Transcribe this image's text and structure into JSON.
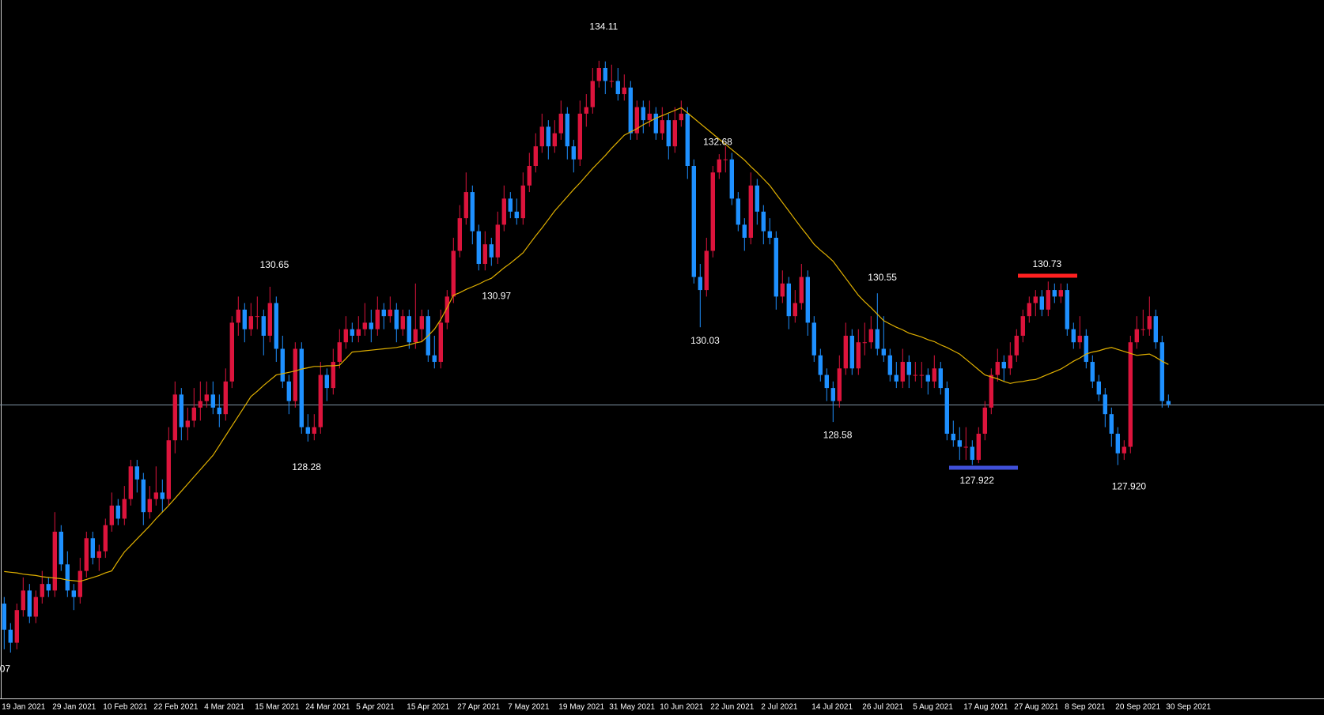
{
  "chart_data": {
    "type": "candlestick",
    "categories": [
      "19 Jan 2021",
      null,
      null,
      null,
      null,
      null,
      null,
      null,
      "29 Jan 2021",
      null,
      null,
      null,
      null,
      null,
      null,
      null,
      "10 Feb 2021",
      null,
      null,
      null,
      null,
      null,
      null,
      null,
      "22 Feb 2021",
      null,
      null,
      null,
      null,
      null,
      null,
      null,
      "4 Mar 2021",
      null,
      null,
      null,
      null,
      null,
      null,
      null,
      "15 Mar 2021",
      null,
      null,
      null,
      null,
      null,
      null,
      null,
      "24 Mar 2021",
      null,
      null,
      null,
      null,
      null,
      null,
      null,
      "5 Apr 2021",
      null,
      null,
      null,
      null,
      null,
      null,
      null,
      "15 Apr 2021",
      null,
      null,
      null,
      null,
      null,
      null,
      null,
      "27 Apr 2021",
      null,
      null,
      null,
      null,
      null,
      null,
      null,
      "7 May 2021",
      null,
      null,
      null,
      null,
      null,
      null,
      null,
      "19 May 2021",
      null,
      null,
      null,
      null,
      null,
      null,
      null,
      "31 May 2021",
      null,
      null,
      null,
      null,
      null,
      null,
      null,
      "10 Jun 2021",
      null,
      null,
      null,
      null,
      null,
      null,
      null,
      "22 Jun 2021",
      null,
      null,
      null,
      null,
      null,
      null,
      null,
      "2 Jul 2021",
      null,
      null,
      null,
      null,
      null,
      null,
      null,
      "14 Jul 2021",
      null,
      null,
      null,
      null,
      null,
      null,
      null,
      "26 Jul 2021",
      null,
      null,
      null,
      null,
      null,
      null,
      null,
      "5 Aug 2021",
      null,
      null,
      null,
      null,
      null,
      null,
      null,
      "17 Aug 2021",
      null,
      null,
      null,
      null,
      null,
      null,
      null,
      "27 Aug 2021",
      null,
      null,
      null,
      null,
      null,
      null,
      null,
      "8 Sep 2021",
      null,
      null,
      null,
      null,
      null,
      null,
      null,
      "20 Sep 2021",
      null,
      null,
      null,
      null,
      null,
      null,
      null,
      "30 Sep 2021"
    ],
    "ohlc": [
      [
        125.8,
        125.9,
        125.1,
        125.4
      ],
      [
        125.4,
        125.5,
        125.05,
        125.2
      ],
      [
        125.2,
        125.8,
        125.1,
        125.7
      ],
      [
        125.7,
        126.2,
        125.6,
        126.0
      ],
      [
        126.0,
        126.1,
        125.5,
        125.6
      ],
      [
        125.6,
        126.0,
        125.5,
        125.9
      ],
      [
        125.9,
        126.3,
        125.8,
        126.1
      ],
      [
        126.1,
        126.2,
        125.9,
        126.0
      ],
      [
        126.0,
        127.2,
        125.9,
        126.9
      ],
      [
        126.9,
        127.0,
        126.3,
        126.4
      ],
      [
        126.4,
        126.6,
        125.9,
        126.0
      ],
      [
        126.0,
        126.1,
        125.7,
        125.9
      ],
      [
        125.9,
        126.5,
        125.8,
        126.3
      ],
      [
        126.3,
        126.9,
        126.2,
        126.8
      ],
      [
        126.8,
        126.9,
        126.4,
        126.5
      ],
      [
        126.5,
        126.7,
        126.3,
        126.6
      ],
      [
        126.6,
        127.1,
        126.5,
        127.0
      ],
      [
        127.0,
        127.5,
        126.9,
        127.3
      ],
      [
        127.3,
        127.4,
        127.0,
        127.1
      ],
      [
        127.1,
        127.6,
        127.0,
        127.4
      ],
      [
        127.4,
        128.0,
        127.3,
        127.9
      ],
      [
        127.9,
        128.0,
        127.5,
        127.7
      ],
      [
        127.7,
        127.8,
        127.0,
        127.2
      ],
      [
        127.2,
        127.6,
        127.1,
        127.4
      ],
      [
        127.4,
        127.9,
        127.3,
        127.5
      ],
      [
        127.5,
        127.7,
        127.2,
        127.4
      ],
      [
        127.4,
        128.5,
        127.3,
        128.3
      ],
      [
        128.3,
        129.2,
        128.1,
        129.0
      ],
      [
        129.0,
        129.1,
        128.3,
        128.5
      ],
      [
        128.5,
        128.8,
        128.3,
        128.6
      ],
      [
        128.6,
        129.1,
        128.5,
        128.8
      ],
      [
        128.8,
        129.2,
        128.6,
        128.9
      ],
      [
        128.9,
        129.2,
        128.8,
        129.0
      ],
      [
        129.0,
        129.2,
        128.7,
        128.8
      ],
      [
        128.8,
        129.0,
        128.5,
        128.7
      ],
      [
        128.7,
        129.4,
        128.6,
        129.2
      ],
      [
        129.2,
        130.2,
        129.1,
        130.1
      ],
      [
        130.1,
        130.5,
        129.9,
        130.3
      ],
      [
        130.3,
        130.4,
        129.8,
        130.0
      ],
      [
        130.0,
        130.4,
        129.9,
        130.2
      ],
      [
        130.2,
        130.5,
        130.0,
        130.2
      ],
      [
        130.2,
        130.3,
        129.6,
        129.9
      ],
      [
        129.9,
        130.65,
        129.8,
        130.4
      ],
      [
        130.4,
        130.5,
        129.5,
        129.7
      ],
      [
        129.7,
        129.9,
        129.1,
        129.2
      ],
      [
        129.2,
        129.3,
        128.7,
        128.9
      ],
      [
        128.9,
        129.8,
        128.8,
        129.7
      ],
      [
        129.7,
        129.8,
        128.4,
        128.5
      ],
      [
        128.5,
        128.7,
        128.28,
        128.4
      ],
      [
        128.4,
        128.7,
        128.3,
        128.5
      ],
      [
        128.5,
        129.5,
        128.4,
        129.3
      ],
      [
        129.3,
        129.4,
        128.9,
        129.1
      ],
      [
        129.1,
        129.7,
        129.0,
        129.5
      ],
      [
        129.5,
        130.0,
        129.4,
        129.8
      ],
      [
        129.8,
        130.2,
        129.7,
        130.0
      ],
      [
        130.0,
        130.1,
        129.8,
        129.9
      ],
      [
        129.9,
        130.2,
        129.8,
        130.0
      ],
      [
        130.0,
        130.4,
        129.9,
        130.1
      ],
      [
        130.1,
        130.3,
        129.8,
        130.0
      ],
      [
        130.0,
        130.5,
        129.9,
        130.3
      ],
      [
        130.3,
        130.4,
        130.0,
        130.2
      ],
      [
        130.2,
        130.5,
        130.1,
        130.3
      ],
      [
        130.3,
        130.4,
        129.8,
        130.0
      ],
      [
        130.0,
        130.3,
        129.9,
        130.2
      ],
      [
        130.2,
        130.3,
        129.7,
        129.8
      ],
      [
        129.8,
        130.7,
        129.7,
        130.0
      ],
      [
        130.0,
        130.3,
        129.8,
        130.2
      ],
      [
        130.2,
        130.3,
        129.5,
        129.6
      ],
      [
        129.6,
        129.9,
        129.4,
        129.5
      ],
      [
        129.5,
        130.3,
        129.4,
        130.1
      ],
      [
        130.1,
        130.6,
        130.0,
        130.5
      ],
      [
        130.5,
        131.4,
        130.4,
        131.2
      ],
      [
        131.2,
        131.9,
        131.1,
        131.7
      ],
      [
        131.7,
        132.4,
        131.6,
        132.1
      ],
      [
        132.1,
        132.2,
        131.3,
        131.5
      ],
      [
        131.5,
        131.6,
        130.9,
        131.0
      ],
      [
        131.0,
        131.5,
        130.9,
        131.3
      ],
      [
        131.3,
        131.4,
        130.97,
        131.1
      ],
      [
        131.1,
        131.8,
        131.0,
        131.6
      ],
      [
        131.6,
        132.2,
        131.5,
        132.0
      ],
      [
        132.0,
        132.1,
        131.7,
        131.8
      ],
      [
        131.8,
        132.0,
        131.6,
        131.7
      ],
      [
        131.7,
        132.4,
        131.6,
        132.2
      ],
      [
        132.2,
        132.7,
        132.1,
        132.5
      ],
      [
        132.5,
        133.0,
        132.4,
        132.8
      ],
      [
        132.8,
        133.3,
        132.7,
        133.1
      ],
      [
        133.1,
        133.2,
        132.6,
        132.8
      ],
      [
        132.8,
        133.2,
        132.7,
        133.0
      ],
      [
        133.0,
        133.5,
        132.9,
        133.3
      ],
      [
        133.3,
        133.4,
        132.6,
        132.8
      ],
      [
        132.8,
        132.9,
        132.4,
        132.6
      ],
      [
        132.6,
        133.5,
        132.5,
        133.3
      ],
      [
        133.3,
        133.6,
        133.1,
        133.4
      ],
      [
        133.4,
        134.0,
        133.3,
        133.8
      ],
      [
        133.8,
        134.11,
        133.7,
        134.0
      ],
      [
        134.0,
        134.1,
        133.6,
        133.8
      ],
      [
        133.8,
        134.05,
        133.7,
        133.8
      ],
      [
        133.8,
        134.0,
        133.5,
        133.6
      ],
      [
        133.6,
        133.9,
        133.5,
        133.7
      ],
      [
        133.7,
        133.8,
        132.9,
        133.0
      ],
      [
        133.0,
        133.5,
        132.9,
        133.4
      ],
      [
        133.4,
        133.5,
        133.0,
        133.2
      ],
      [
        133.2,
        133.5,
        133.1,
        133.3
      ],
      [
        133.3,
        133.4,
        132.9,
        133.0
      ],
      [
        133.0,
        133.4,
        132.9,
        133.2
      ],
      [
        133.2,
        133.3,
        132.6,
        132.8
      ],
      [
        132.8,
        133.4,
        132.7,
        133.2
      ],
      [
        133.2,
        133.5,
        133.1,
        133.3
      ],
      [
        133.3,
        133.4,
        132.3,
        132.5
      ],
      [
        132.5,
        132.6,
        130.7,
        130.8
      ],
      [
        130.8,
        131.0,
        130.03,
        130.6
      ],
      [
        130.6,
        131.4,
        130.5,
        131.2
      ],
      [
        131.2,
        132.5,
        131.1,
        132.4
      ],
      [
        132.4,
        132.68,
        132.3,
        132.6
      ],
      [
        132.6,
        132.8,
        132.4,
        132.6
      ],
      [
        132.6,
        132.7,
        131.9,
        132.0
      ],
      [
        132.0,
        132.1,
        131.5,
        131.6
      ],
      [
        131.6,
        131.7,
        131.2,
        131.4
      ],
      [
        131.4,
        132.4,
        131.3,
        132.2
      ],
      [
        132.2,
        132.3,
        131.6,
        131.8
      ],
      [
        131.8,
        131.9,
        131.3,
        131.5
      ],
      [
        131.5,
        131.7,
        131.3,
        131.4
      ],
      [
        131.4,
        131.5,
        130.3,
        130.5
      ],
      [
        130.5,
        130.9,
        130.4,
        130.7
      ],
      [
        130.7,
        130.8,
        130.0,
        130.2
      ],
      [
        130.2,
        130.6,
        130.1,
        130.4
      ],
      [
        130.4,
        131.0,
        130.3,
        130.8
      ],
      [
        130.8,
        130.9,
        129.9,
        130.1
      ],
      [
        130.1,
        130.2,
        129.5,
        129.6
      ],
      [
        129.6,
        129.7,
        129.2,
        129.3
      ],
      [
        129.3,
        129.4,
        128.9,
        129.1
      ],
      [
        129.1,
        129.2,
        128.58,
        128.9
      ],
      [
        128.9,
        129.6,
        128.8,
        129.4
      ],
      [
        129.4,
        130.1,
        129.3,
        129.9
      ],
      [
        129.9,
        130.0,
        129.3,
        129.4
      ],
      [
        129.4,
        130.0,
        129.3,
        129.8
      ],
      [
        129.8,
        130.1,
        129.6,
        129.8
      ],
      [
        129.8,
        130.2,
        129.7,
        130.0
      ],
      [
        130.0,
        130.55,
        129.6,
        129.7
      ],
      [
        129.7,
        130.2,
        129.5,
        129.6
      ],
      [
        129.6,
        129.7,
        129.2,
        129.3
      ],
      [
        129.3,
        129.5,
        129.1,
        129.2
      ],
      [
        129.2,
        129.7,
        129.1,
        129.5
      ],
      [
        129.5,
        129.6,
        129.1,
        129.3
      ],
      [
        129.3,
        129.5,
        129.2,
        129.3
      ],
      [
        129.3,
        129.5,
        129.1,
        129.3
      ],
      [
        129.3,
        129.4,
        129.0,
        129.2
      ],
      [
        129.2,
        129.6,
        129.1,
        129.4
      ],
      [
        129.4,
        129.5,
        129.0,
        129.1
      ],
      [
        129.1,
        129.2,
        128.3,
        128.4
      ],
      [
        128.4,
        128.6,
        128.2,
        128.3
      ],
      [
        128.3,
        128.5,
        128.0,
        128.2
      ],
      [
        128.2,
        128.5,
        128.0,
        128.2
      ],
      [
        128.2,
        128.3,
        127.922,
        128.0
      ],
      [
        128.0,
        128.5,
        127.95,
        128.4
      ],
      [
        128.4,
        128.9,
        128.3,
        128.8
      ],
      [
        128.8,
        129.4,
        128.7,
        129.3
      ],
      [
        129.3,
        129.7,
        129.2,
        129.5
      ],
      [
        129.5,
        129.6,
        129.2,
        129.4
      ],
      [
        129.4,
        129.8,
        129.3,
        129.6
      ],
      [
        129.6,
        130.0,
        129.5,
        129.9
      ],
      [
        129.9,
        130.3,
        129.8,
        130.2
      ],
      [
        130.2,
        130.5,
        130.1,
        130.4
      ],
      [
        130.4,
        130.6,
        130.2,
        130.5
      ],
      [
        130.5,
        130.6,
        130.2,
        130.3
      ],
      [
        130.3,
        130.73,
        130.2,
        130.6
      ],
      [
        130.6,
        130.7,
        130.4,
        130.5
      ],
      [
        130.5,
        130.7,
        130.4,
        130.6
      ],
      [
        130.6,
        130.7,
        129.9,
        130.0
      ],
      [
        130.0,
        130.1,
        129.7,
        129.8
      ],
      [
        129.8,
        130.2,
        129.7,
        129.9
      ],
      [
        129.9,
        130.0,
        129.4,
        129.5
      ],
      [
        129.5,
        129.6,
        129.1,
        129.2
      ],
      [
        129.2,
        129.3,
        128.9,
        129.0
      ],
      [
        129.0,
        129.1,
        128.5,
        128.7
      ],
      [
        128.7,
        128.8,
        128.2,
        128.4
      ],
      [
        128.4,
        128.5,
        127.92,
        128.1
      ],
      [
        128.1,
        128.3,
        128.0,
        128.2
      ],
      [
        128.2,
        129.9,
        128.1,
        129.8
      ],
      [
        129.8,
        130.2,
        129.7,
        130.0
      ],
      [
        130.0,
        130.3,
        129.9,
        130.0
      ],
      [
        130.0,
        130.5,
        129.9,
        130.2
      ],
      [
        130.2,
        130.3,
        129.7,
        129.8
      ],
      [
        129.8,
        129.9,
        128.8,
        128.9
      ],
      [
        128.9,
        129.0,
        128.8,
        128.85
      ]
    ],
    "ma": [
      126.29,
      126.28,
      126.27,
      126.25,
      126.24,
      126.23,
      126.21,
      126.2,
      126.19,
      126.18,
      126.16,
      126.15,
      126.14,
      126.17,
      126.2,
      126.23,
      126.27,
      126.3,
      126.45,
      126.59,
      126.69,
      126.79,
      126.89,
      126.99,
      127.1,
      127.2,
      127.3,
      127.41,
      127.52,
      127.63,
      127.74,
      127.85,
      127.96,
      128.07,
      128.22,
      128.37,
      128.52,
      128.67,
      128.82,
      128.97,
      129.05,
      129.14,
      129.22,
      129.3,
      129.32,
      129.34,
      129.36,
      129.39,
      129.41,
      129.43,
      129.43,
      129.44,
      129.44,
      129.45,
      129.55,
      129.65,
      129.66,
      129.67,
      129.68,
      129.69,
      129.7,
      129.71,
      129.72,
      129.74,
      129.76,
      129.79,
      129.81,
      129.9,
      130.0,
      130.15,
      130.33,
      130.52,
      130.56,
      130.61,
      130.65,
      130.69,
      130.74,
      130.78,
      130.86,
      130.94,
      131.01,
      131.09,
      131.17,
      131.3,
      131.43,
      131.55,
      131.68,
      131.81,
      131.92,
      132.03,
      132.14,
      132.24,
      132.35,
      132.46,
      132.56,
      132.66,
      132.77,
      132.87,
      132.97,
      133.02,
      133.07,
      133.13,
      133.18,
      133.23,
      133.27,
      133.31,
      133.35,
      133.39,
      133.31,
      133.23,
      133.15,
      133.07,
      132.99,
      132.91,
      132.83,
      132.75,
      132.67,
      132.59,
      132.49,
      132.4,
      132.3,
      132.2,
      132.07,
      131.94,
      131.81,
      131.68,
      131.55,
      131.43,
      131.3,
      131.21,
      131.13,
      131.04,
      130.91,
      130.78,
      130.65,
      130.52,
      130.42,
      130.33,
      130.23,
      130.13,
      130.08,
      130.03,
      129.99,
      129.94,
      129.91,
      129.88,
      129.84,
      129.81,
      129.76,
      129.72,
      129.67,
      129.62,
      129.54,
      129.46,
      129.38,
      129.3,
      129.27,
      129.24,
      129.2,
      129.17,
      129.19,
      129.2,
      129.22,
      129.23,
      129.27,
      129.31,
      129.35,
      129.39,
      129.45,
      129.51,
      129.56,
      129.62,
      129.65,
      129.67,
      129.7,
      129.72,
      129.69,
      129.66,
      129.63,
      129.6,
      129.61,
      129.62,
      129.57,
      129.51,
      129.46
    ],
    "bid_line": 128.84,
    "annotations": [
      "134.11",
      "130.65",
      "128.28",
      "130.97",
      "132.68",
      "130.03",
      "130.55",
      "128.58",
      "130.73",
      "127.922",
      "127.920",
      "07"
    ],
    "ylim": [
      124.36,
      135.04
    ],
    "bull_color": "#dc143c",
    "bear_color": "#1e90ff",
    "ma_color": "#e0b000",
    "bid_line_color": "#7f93a3"
  }
}
